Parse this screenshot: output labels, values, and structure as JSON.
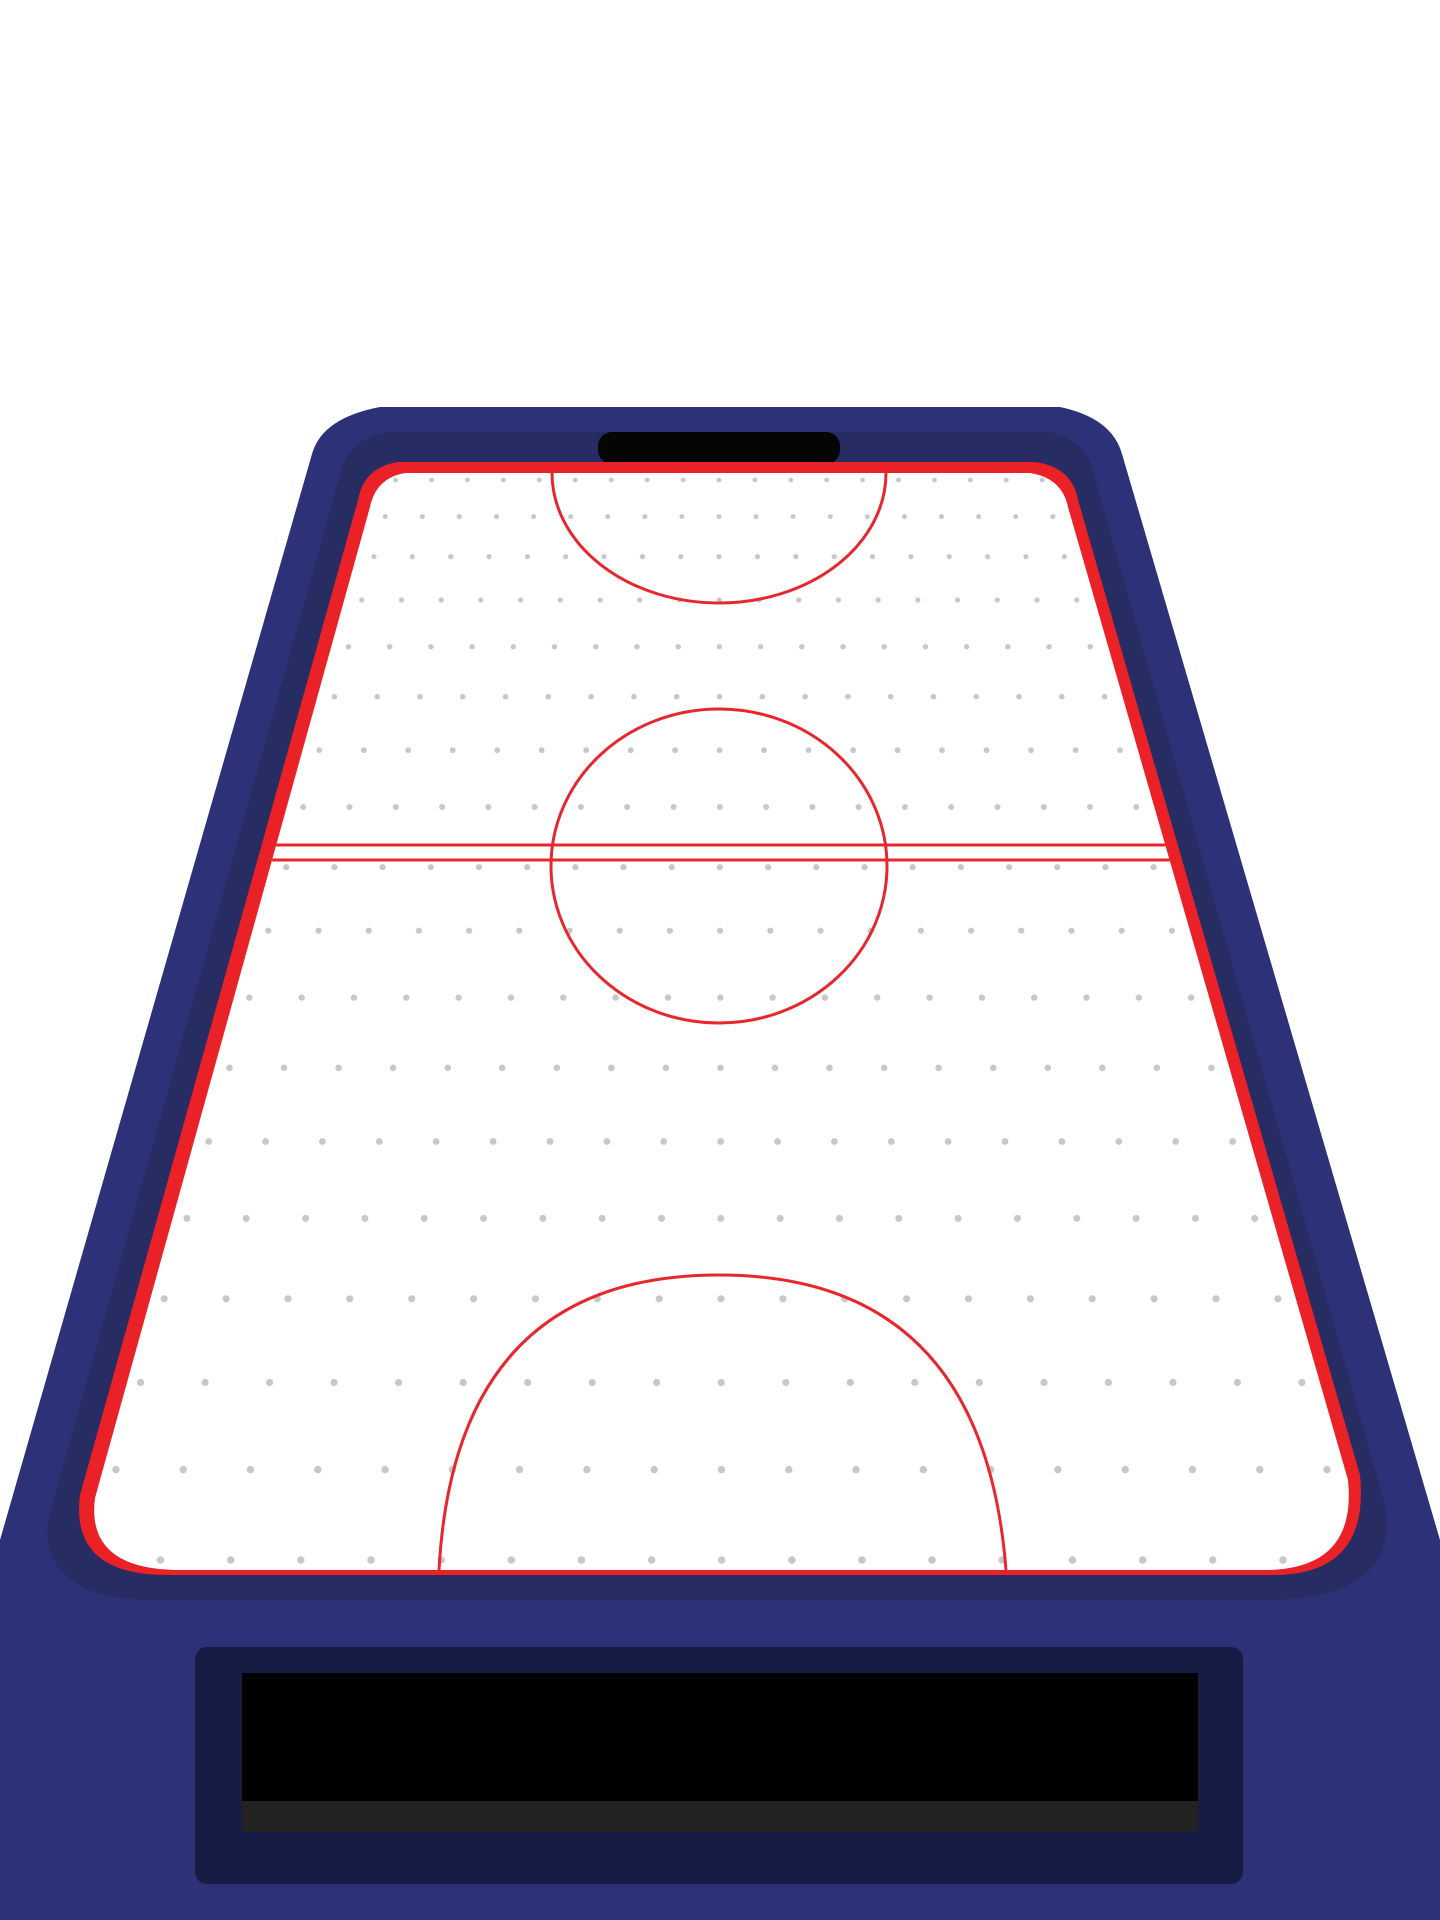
{
  "game": {
    "type": "air-hockey-table",
    "colors": {
      "background": "#ffffff",
      "cabinet": "#2c3178",
      "cabinet_inner_rim": "#272d63",
      "panel_frame": "#171c45",
      "screen": "#000000",
      "screen_strip": "#222222",
      "goal_slot": "#050505",
      "rink_border": "#ea2227",
      "rink_surface": "#ffffff",
      "rink_lines": "#e8262d",
      "air_holes": "#c8c8c8"
    }
  }
}
